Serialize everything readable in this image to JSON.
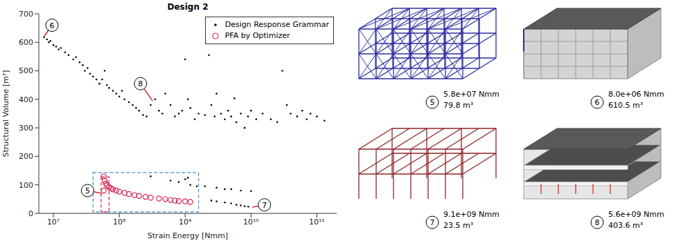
{
  "chart_data": {
    "type": "scatter",
    "title": "Design 2",
    "x_label": "Strain Energy [Nmm]",
    "y_label": "Structural Volume [m³]",
    "log": "x",
    "xlim": [
      6000000,
      200000000000
    ],
    "xticks": [
      {
        "value": 10000000,
        "label": "10⁷"
      },
      {
        "value": 100000000,
        "label": "10⁸"
      },
      {
        "value": 1000000000,
        "label": "10⁹"
      },
      {
        "value": 10000000000,
        "label": "10¹⁰"
      },
      {
        "value": 100000000000,
        "label": "10¹¹"
      }
    ],
    "ylim": [
      0,
      700
    ],
    "yticks": [
      0,
      100,
      200,
      300,
      400,
      500,
      600,
      700
    ],
    "grid": false,
    "legend": "upper right",
    "series": [
      {
        "name": "Design Response Grammar",
        "color": "#000000",
        "marker": "dot",
        "x": [
          7200000,
          8000000,
          8500000,
          9000000,
          10000000,
          11000000,
          12000000,
          13000000,
          15000000,
          17000000,
          20000000,
          22000000,
          25000000,
          28000000,
          30000000,
          33000000,
          36000000,
          40000000,
          45000000,
          50000000,
          55000000,
          60000000,
          65000000,
          70000000,
          80000000,
          90000000,
          100000000,
          110000000,
          120000000,
          140000000,
          160000000,
          180000000,
          200000000,
          230000000,
          260000000,
          300000000,
          350000000,
          400000000,
          450000000,
          500000000,
          600000000,
          700000000,
          800000000,
          900000000,
          1000000000,
          1100000000,
          1200000000,
          1400000000,
          1600000000,
          2000000000,
          2300000000,
          2500000000,
          2800000000,
          3000000000,
          3500000000,
          4000000000,
          4500000000,
          5000000000,
          5600000000,
          6000000000,
          7000000000,
          8000000000,
          9000000000,
          10000000000,
          12000000000,
          15000000000,
          20000000000,
          25000000000,
          30000000000,
          35000000000,
          40000000000,
          50000000000,
          60000000000,
          70000000000,
          80000000000,
          100000000000,
          130000000000,
          300000000,
          600000000,
          800000000,
          1000000000,
          1100000000,
          1200000000,
          1500000000,
          2000000000,
          3000000000,
          4000000000,
          5000000000,
          7000000000,
          10000000000,
          2500000000,
          3000000000,
          4000000000,
          5000000000,
          6000000000,
          7000000000,
          8000000000,
          9100000000
        ],
        "values": [
          618,
          610.5,
          600,
          605,
          590,
          585,
          575,
          580,
          565,
          555,
          540,
          548,
          530,
          520,
          500,
          510,
          490,
          480,
          470,
          455,
          470,
          500,
          450,
          440,
          430,
          420,
          410,
          430,
          400,
          390,
          380,
          370,
          360,
          345,
          340,
          380,
          400,
          360,
          350,
          420,
          380,
          340,
          350,
          360,
          540,
          400,
          370,
          330,
          350,
          345,
          555,
          380,
          340,
          420,
          350,
          330,
          360,
          340,
          403.6,
          320,
          350,
          300,
          340,
          360,
          330,
          350,
          330,
          320,
          500,
          380,
          350,
          340,
          360,
          330,
          350,
          340,
          325,
          130,
          115,
          110,
          120,
          125,
          100,
          95,
          95,
          90,
          85,
          85,
          80,
          78,
          45,
          42,
          38,
          35,
          30,
          28,
          25,
          23.5
        ]
      },
      {
        "name": "PFA by Optimizer",
        "color": "#d6204f",
        "marker": "circle",
        "x": [
          58000000,
          60000000,
          62000000,
          65000000,
          70000000,
          75000000,
          80000000,
          90000000,
          100000000,
          120000000,
          140000000,
          170000000,
          200000000,
          250000000,
          300000000,
          400000000,
          500000000,
          600000000,
          700000000,
          800000000,
          1000000000,
          1200000000,
          58000000
        ],
        "values": [
          130,
          115,
          105,
          98,
          92,
          88,
          84,
          80,
          76,
          72,
          68,
          64,
          61,
          58,
          55,
          52,
          50,
          47,
          45,
          43,
          42,
          40,
          79.8
        ]
      }
    ],
    "boxes": [
      {
        "x": [
          40000000,
          1600000000
        ],
        "y": [
          5,
          143
        ],
        "color": "#3a8fd6"
      },
      {
        "x": [
          53000000,
          70000000
        ],
        "y": [
          5,
          128
        ],
        "color": "#d6204f"
      }
    ],
    "annotations": [
      {
        "label": "6",
        "x": 9500000,
        "y": 660,
        "target": [
          7300000,
          622
        ]
      },
      {
        "label": "8",
        "x": 210000000,
        "y": 455,
        "target": [
          320000000,
          395
        ]
      },
      {
        "label": "5",
        "x": 33000000,
        "y": 80,
        "target": [
          54000000,
          70
        ]
      },
      {
        "label": "7",
        "x": 16000000000,
        "y": 30,
        "target": [
          10500000000,
          22
        ]
      }
    ]
  },
  "images": [
    {
      "label": "5",
      "energy": "5.8e+07 Nmm",
      "volume": "79.8 m³",
      "type": "truss",
      "color": "#2b2ba0"
    },
    {
      "label": "6",
      "energy": "8.0e+06 Nmm",
      "volume": "610.5 m³",
      "type": "solid",
      "color": "#d4d4d4"
    },
    {
      "label": "7",
      "energy": "9.1e+09 Nmm",
      "volume": "23.5 m³",
      "type": "frame",
      "color": "#8b2323"
    },
    {
      "label": "8",
      "energy": "5.6e+09 Nmm",
      "volume": "403.6 m³",
      "type": "floors",
      "color": "#d4d4d4"
    }
  ]
}
